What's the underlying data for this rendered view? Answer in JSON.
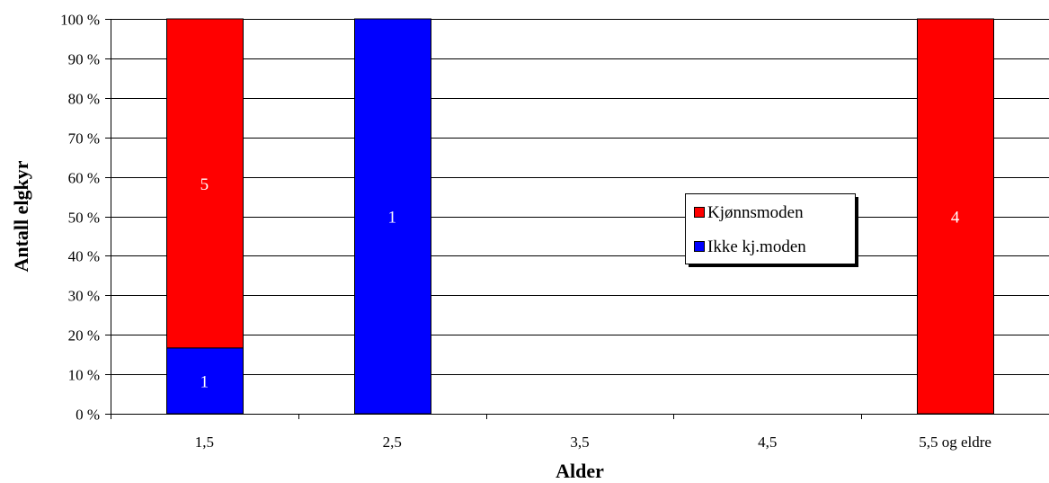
{
  "chart_data": {
    "type": "bar",
    "stacked": true,
    "percent_stacked": true,
    "categories": [
      "1,5",
      "2,5",
      "3,5",
      "4,5",
      "5,5 og eldre"
    ],
    "series": [
      {
        "name": "Ikke kj.moden",
        "color": "#0000ff",
        "values": [
          1,
          1,
          0,
          0,
          0
        ]
      },
      {
        "name": "Kjønnsmoden",
        "color": "#ff0000",
        "values": [
          5,
          0,
          0,
          0,
          4
        ]
      }
    ],
    "xlabel": "Alder",
    "ylabel": "Antall elgkyr",
    "ylim": [
      0,
      100
    ],
    "yticks": [
      "0 %",
      "10 %",
      "20 %",
      "30 %",
      "40 %",
      "50 %",
      "60 %",
      "70 %",
      "80 %",
      "90 %",
      "100 %"
    ],
    "grid": true,
    "legend": {
      "position": "center-right",
      "entries": [
        "Kjønnsmoden",
        "Ikke kj.moden"
      ]
    }
  }
}
